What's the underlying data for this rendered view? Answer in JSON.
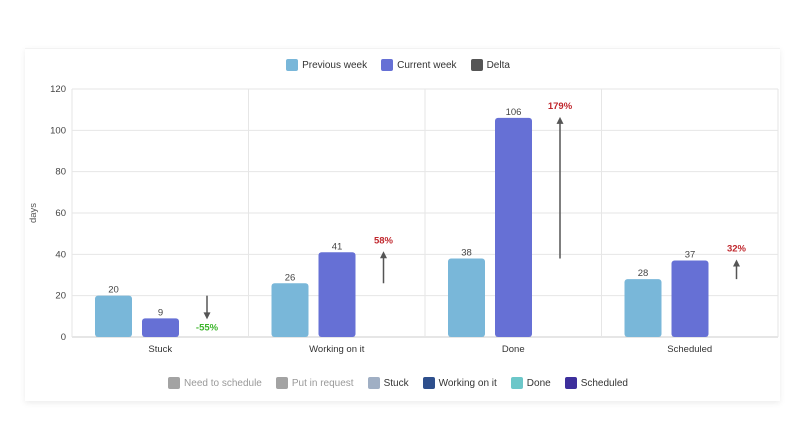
{
  "chart_data": {
    "type": "bar",
    "categories": [
      "Stuck",
      "Working on it",
      "Done",
      "Scheduled"
    ],
    "series": [
      {
        "name": "Previous week",
        "values": [
          20,
          26,
          38,
          28
        ],
        "color": "#79b7d9"
      },
      {
        "name": "Current week",
        "values": [
          9,
          41,
          106,
          37
        ],
        "color": "#6670d5"
      }
    ],
    "delta": {
      "name": "Delta",
      "labels": [
        "-55%",
        "58%",
        "179%",
        "32%"
      ],
      "directions": [
        "down",
        "up",
        "up",
        "up"
      ],
      "color": "#555555",
      "down_color": "#3cb52b",
      "up_color": "#c0272d"
    },
    "ylabel": "days",
    "ylim": [
      0,
      120
    ],
    "yticks": [
      "0",
      "20",
      "40",
      "60",
      "80",
      "100",
      "120"
    ],
    "grid": true,
    "legend_position": "top-center"
  },
  "filters": [
    {
      "label": "Need to schedule",
      "color": "#a3a3a3",
      "active": false
    },
    {
      "label": "Put in request",
      "color": "#a3a3a3",
      "active": false
    },
    {
      "label": "Stuck",
      "color": "#a0afc4",
      "active": true
    },
    {
      "label": "Working on it",
      "color": "#2e4f8c",
      "active": true
    },
    {
      "label": "Done",
      "color": "#6cc7c9",
      "active": true
    },
    {
      "label": "Scheduled",
      "color": "#3d2f9c",
      "active": true
    }
  ]
}
